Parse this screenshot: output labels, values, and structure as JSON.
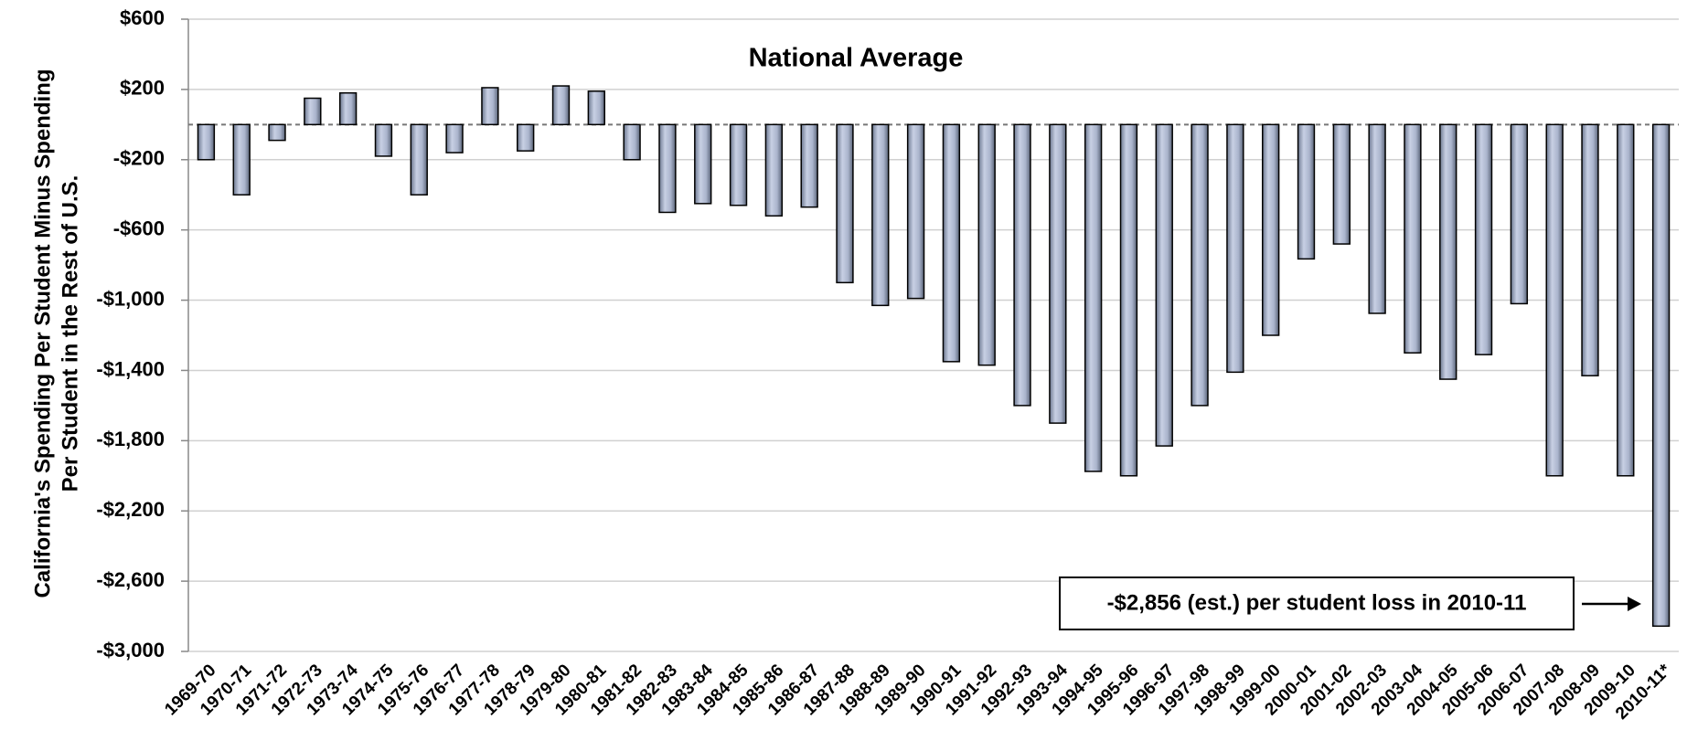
{
  "chart_data": {
    "type": "bar",
    "title": "National Average",
    "y_label": [
      "California's Spending Per Student Minus Spending",
      "Per Student in the Rest of U.S."
    ],
    "annotation": "-$2,856 (est.) per student loss in 2010-11",
    "categories": [
      "1969-70",
      "1970-71",
      "1971-72",
      "1972-73",
      "1973-74",
      "1974-75",
      "1975-76",
      "1976-77",
      "1977-78",
      "1978-79",
      "1979-80",
      "1980-81",
      "1981-82",
      "1982-83",
      "1983-84",
      "1984-85",
      "1985-86",
      "1986-87",
      "1987-88",
      "1988-89",
      "1989-90",
      "1990-91",
      "1991-92",
      "1992-93",
      "1993-94",
      "1994-95",
      "1995-96",
      "1996-97",
      "1997-98",
      "1998-99",
      "1999-00",
      "2000-01",
      "2001-02",
      "2002-03",
      "2003-04",
      "2004-05",
      "2005-06",
      "2006-07",
      "2007-08",
      "2008-09",
      "2009-10",
      "2010-11*"
    ],
    "values": [
      -200,
      -400,
      -90,
      150,
      180,
      -180,
      -400,
      -160,
      210,
      -150,
      220,
      190,
      -200,
      -500,
      -450,
      -460,
      -520,
      -470,
      -900,
      -1030,
      -990,
      -1350,
      -1370,
      -1600,
      -1700,
      -1975,
      -2000,
      -1830,
      -1600,
      -1410,
      -1200,
      -765,
      -680,
      -1075,
      -1300,
      -1450,
      -1310,
      -1020,
      -2000,
      -1430,
      -2000,
      -2856
    ],
    "color": "#aab4cc",
    "ylim": [
      -3000,
      600
    ],
    "yticks": [
      {
        "value": 600,
        "label": "$600"
      },
      {
        "value": 200,
        "label": "$200"
      },
      {
        "value": -200,
        "label": "-$200"
      },
      {
        "value": -600,
        "label": "-$600"
      },
      {
        "value": -1000,
        "label": "-$1,000"
      },
      {
        "value": -1400,
        "label": "-$1,400"
      },
      {
        "value": -1800,
        "label": "-$1,800"
      },
      {
        "value": -2200,
        "label": "-$2,200"
      },
      {
        "value": -2600,
        "label": "-$2,600"
      },
      {
        "value": -3000,
        "label": "-$3,000"
      }
    ],
    "grid": true
  }
}
